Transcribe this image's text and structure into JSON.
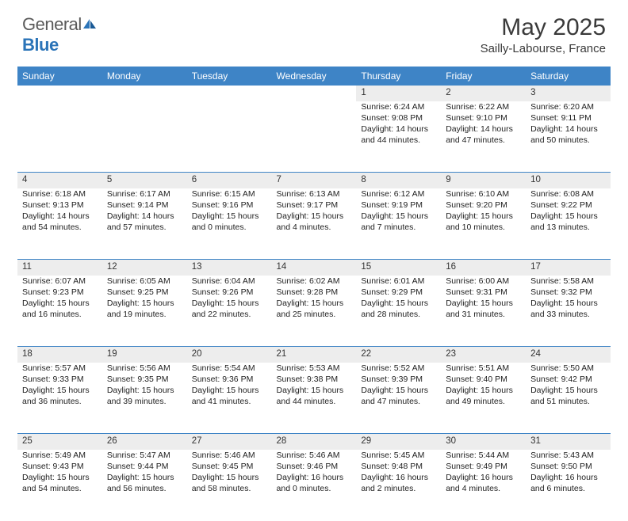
{
  "brand": {
    "general": "General",
    "blue": "Blue"
  },
  "title": "May 2025",
  "location": "Sailly-Labourse, France",
  "header_bg": "#3e84c6",
  "header_text": "#ffffff",
  "daynum_bg": "#ededed",
  "border_color": "#3e84c6",
  "weekdays": [
    "Sunday",
    "Monday",
    "Tuesday",
    "Wednesday",
    "Thursday",
    "Friday",
    "Saturday"
  ],
  "weeks": [
    {
      "nums": [
        "",
        "",
        "",
        "",
        "1",
        "2",
        "3"
      ],
      "cells": [
        null,
        null,
        null,
        null,
        {
          "sunrise": "6:24 AM",
          "sunset": "9:08 PM",
          "daylight": "14 hours and 44 minutes."
        },
        {
          "sunrise": "6:22 AM",
          "sunset": "9:10 PM",
          "daylight": "14 hours and 47 minutes."
        },
        {
          "sunrise": "6:20 AM",
          "sunset": "9:11 PM",
          "daylight": "14 hours and 50 minutes."
        }
      ]
    },
    {
      "nums": [
        "4",
        "5",
        "6",
        "7",
        "8",
        "9",
        "10"
      ],
      "cells": [
        {
          "sunrise": "6:18 AM",
          "sunset": "9:13 PM",
          "daylight": "14 hours and 54 minutes."
        },
        {
          "sunrise": "6:17 AM",
          "sunset": "9:14 PM",
          "daylight": "14 hours and 57 minutes."
        },
        {
          "sunrise": "6:15 AM",
          "sunset": "9:16 PM",
          "daylight": "15 hours and 0 minutes."
        },
        {
          "sunrise": "6:13 AM",
          "sunset": "9:17 PM",
          "daylight": "15 hours and 4 minutes."
        },
        {
          "sunrise": "6:12 AM",
          "sunset": "9:19 PM",
          "daylight": "15 hours and 7 minutes."
        },
        {
          "sunrise": "6:10 AM",
          "sunset": "9:20 PM",
          "daylight": "15 hours and 10 minutes."
        },
        {
          "sunrise": "6:08 AM",
          "sunset": "9:22 PM",
          "daylight": "15 hours and 13 minutes."
        }
      ]
    },
    {
      "nums": [
        "11",
        "12",
        "13",
        "14",
        "15",
        "16",
        "17"
      ],
      "cells": [
        {
          "sunrise": "6:07 AM",
          "sunset": "9:23 PM",
          "daylight": "15 hours and 16 minutes."
        },
        {
          "sunrise": "6:05 AM",
          "sunset": "9:25 PM",
          "daylight": "15 hours and 19 minutes."
        },
        {
          "sunrise": "6:04 AM",
          "sunset": "9:26 PM",
          "daylight": "15 hours and 22 minutes."
        },
        {
          "sunrise": "6:02 AM",
          "sunset": "9:28 PM",
          "daylight": "15 hours and 25 minutes."
        },
        {
          "sunrise": "6:01 AM",
          "sunset": "9:29 PM",
          "daylight": "15 hours and 28 minutes."
        },
        {
          "sunrise": "6:00 AM",
          "sunset": "9:31 PM",
          "daylight": "15 hours and 31 minutes."
        },
        {
          "sunrise": "5:58 AM",
          "sunset": "9:32 PM",
          "daylight": "15 hours and 33 minutes."
        }
      ]
    },
    {
      "nums": [
        "18",
        "19",
        "20",
        "21",
        "22",
        "23",
        "24"
      ],
      "cells": [
        {
          "sunrise": "5:57 AM",
          "sunset": "9:33 PM",
          "daylight": "15 hours and 36 minutes."
        },
        {
          "sunrise": "5:56 AM",
          "sunset": "9:35 PM",
          "daylight": "15 hours and 39 minutes."
        },
        {
          "sunrise": "5:54 AM",
          "sunset": "9:36 PM",
          "daylight": "15 hours and 41 minutes."
        },
        {
          "sunrise": "5:53 AM",
          "sunset": "9:38 PM",
          "daylight": "15 hours and 44 minutes."
        },
        {
          "sunrise": "5:52 AM",
          "sunset": "9:39 PM",
          "daylight": "15 hours and 47 minutes."
        },
        {
          "sunrise": "5:51 AM",
          "sunset": "9:40 PM",
          "daylight": "15 hours and 49 minutes."
        },
        {
          "sunrise": "5:50 AM",
          "sunset": "9:42 PM",
          "daylight": "15 hours and 51 minutes."
        }
      ]
    },
    {
      "nums": [
        "25",
        "26",
        "27",
        "28",
        "29",
        "30",
        "31"
      ],
      "cells": [
        {
          "sunrise": "5:49 AM",
          "sunset": "9:43 PM",
          "daylight": "15 hours and 54 minutes."
        },
        {
          "sunrise": "5:47 AM",
          "sunset": "9:44 PM",
          "daylight": "15 hours and 56 minutes."
        },
        {
          "sunrise": "5:46 AM",
          "sunset": "9:45 PM",
          "daylight": "15 hours and 58 minutes."
        },
        {
          "sunrise": "5:46 AM",
          "sunset": "9:46 PM",
          "daylight": "16 hours and 0 minutes."
        },
        {
          "sunrise": "5:45 AM",
          "sunset": "9:48 PM",
          "daylight": "16 hours and 2 minutes."
        },
        {
          "sunrise": "5:44 AM",
          "sunset": "9:49 PM",
          "daylight": "16 hours and 4 minutes."
        },
        {
          "sunrise": "5:43 AM",
          "sunset": "9:50 PM",
          "daylight": "16 hours and 6 minutes."
        }
      ]
    }
  ],
  "labels": {
    "sunrise": "Sunrise: ",
    "sunset": "Sunset: ",
    "daylight": "Daylight: "
  }
}
